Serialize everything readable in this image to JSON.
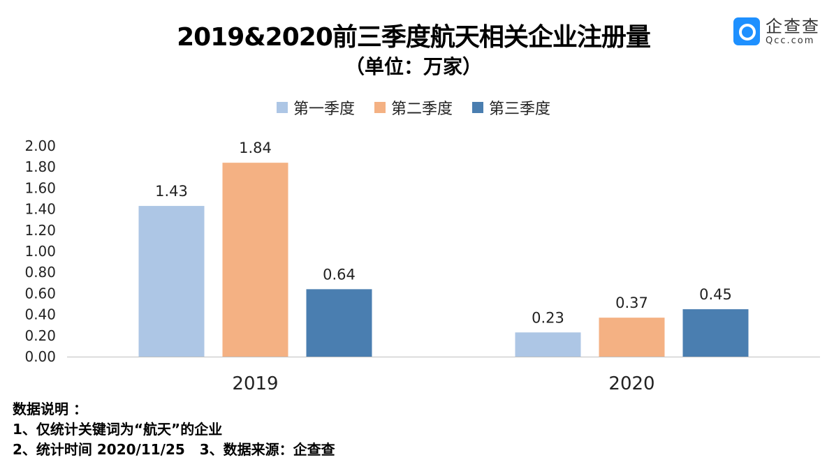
{
  "logo": {
    "cn": "企查查",
    "en": "Qcc.com",
    "color": "#1e90ff"
  },
  "notes": {
    "heading": "数据说明 ：",
    "line1": "1、仅统计关键词为“航天”的企业",
    "line2": "2、统计时间 2020/11/25   3、数据来源：企查查"
  },
  "chart_data": {
    "type": "bar",
    "title": "2019&2020前三季度航天相关企业注册量",
    "subtitle": "（单位：万家）",
    "categories": [
      "2019",
      "2020"
    ],
    "series": [
      {
        "name": "第一季度",
        "values": [
          1.43,
          0.23
        ],
        "color": "#adc6e5"
      },
      {
        "name": "第二季度",
        "values": [
          1.84,
          0.37
        ],
        "color": "#f4b183"
      },
      {
        "name": "第三季度",
        "values": [
          0.64,
          0.45
        ],
        "color": "#4a7eb0"
      }
    ],
    "ylim": [
      0,
      2.0
    ],
    "yticks": [
      "0.00",
      "0.20",
      "0.40",
      "0.60",
      "0.80",
      "1.00",
      "1.20",
      "1.40",
      "1.60",
      "1.80",
      "2.00"
    ],
    "grid": false,
    "legend": "top-center",
    "data_labels": true
  }
}
